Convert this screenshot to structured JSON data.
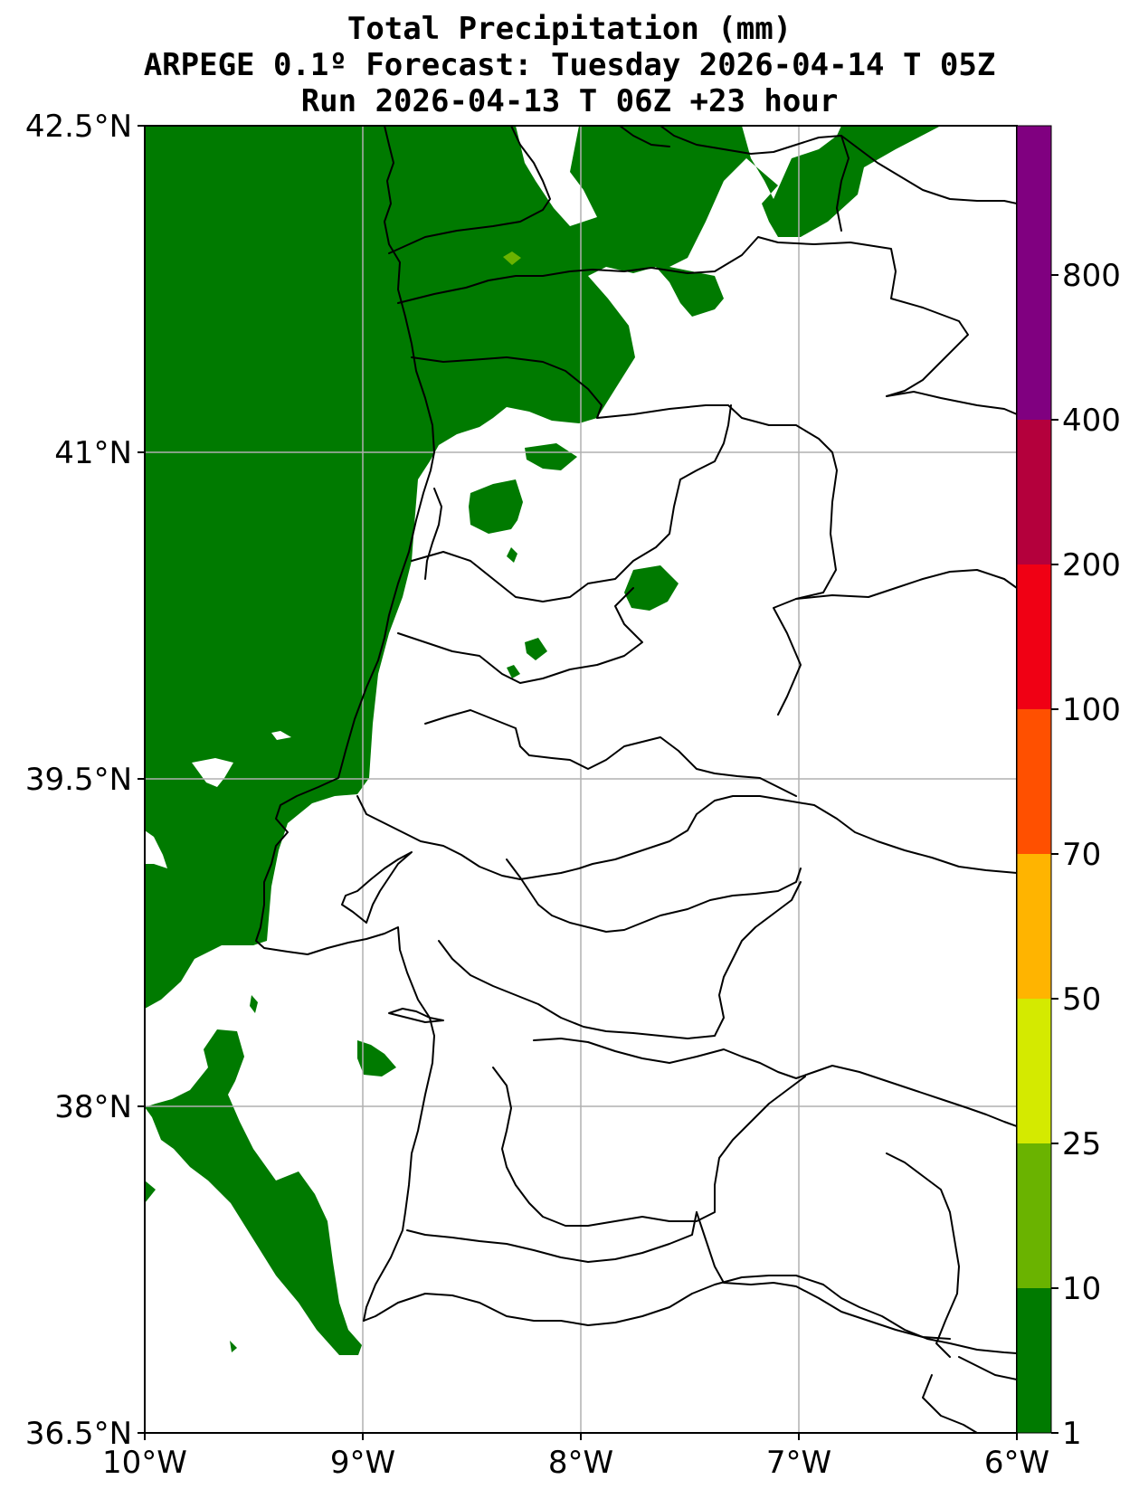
{
  "title": {
    "line1": "Total Precipitation (mm)",
    "line2": "ARPEGE 0.1º Forecast: Tuesday 2026-04-14 T 05Z",
    "line3": "Run 2026-04-13 T 06Z +23 hour"
  },
  "map": {
    "lon_range": [
      -10,
      -6
    ],
    "lat_range": [
      36.5,
      42.5
    ],
    "lon_ticks": [
      {
        "value": -10,
        "label": "10°W"
      },
      {
        "value": -9,
        "label": "9°W"
      },
      {
        "value": -8,
        "label": "8°W"
      },
      {
        "value": -7,
        "label": "7°W"
      },
      {
        "value": -6,
        "label": "6°W"
      }
    ],
    "lat_ticks": [
      {
        "value": 42.5,
        "label": "42.5°N"
      },
      {
        "value": 41,
        "label": "41°N"
      },
      {
        "value": 39.5,
        "label": "39.5°N"
      },
      {
        "value": 38,
        "label": "38°N"
      },
      {
        "value": 36.5,
        "label": "36.5°N"
      }
    ],
    "grid": true,
    "colors": {
      "grid": "#b0b0b0",
      "boundary": "#000000",
      "frame": "#000000"
    }
  },
  "colorbar": {
    "levels": [
      {
        "label": "1",
        "color": "#007a00"
      },
      {
        "label": "10",
        "color": "#6ab300"
      },
      {
        "label": "25",
        "color": "#d4ea00"
      },
      {
        "label": "50",
        "color": "#ffb400"
      },
      {
        "label": "70",
        "color": "#ff5000"
      },
      {
        "label": "100",
        "color": "#f00014"
      },
      {
        "label": "200",
        "color": "#b4003c"
      },
      {
        "label": "400",
        "color": "#800080"
      },
      {
        "label": "800",
        "color": ""
      }
    ],
    "placement": "right"
  }
}
